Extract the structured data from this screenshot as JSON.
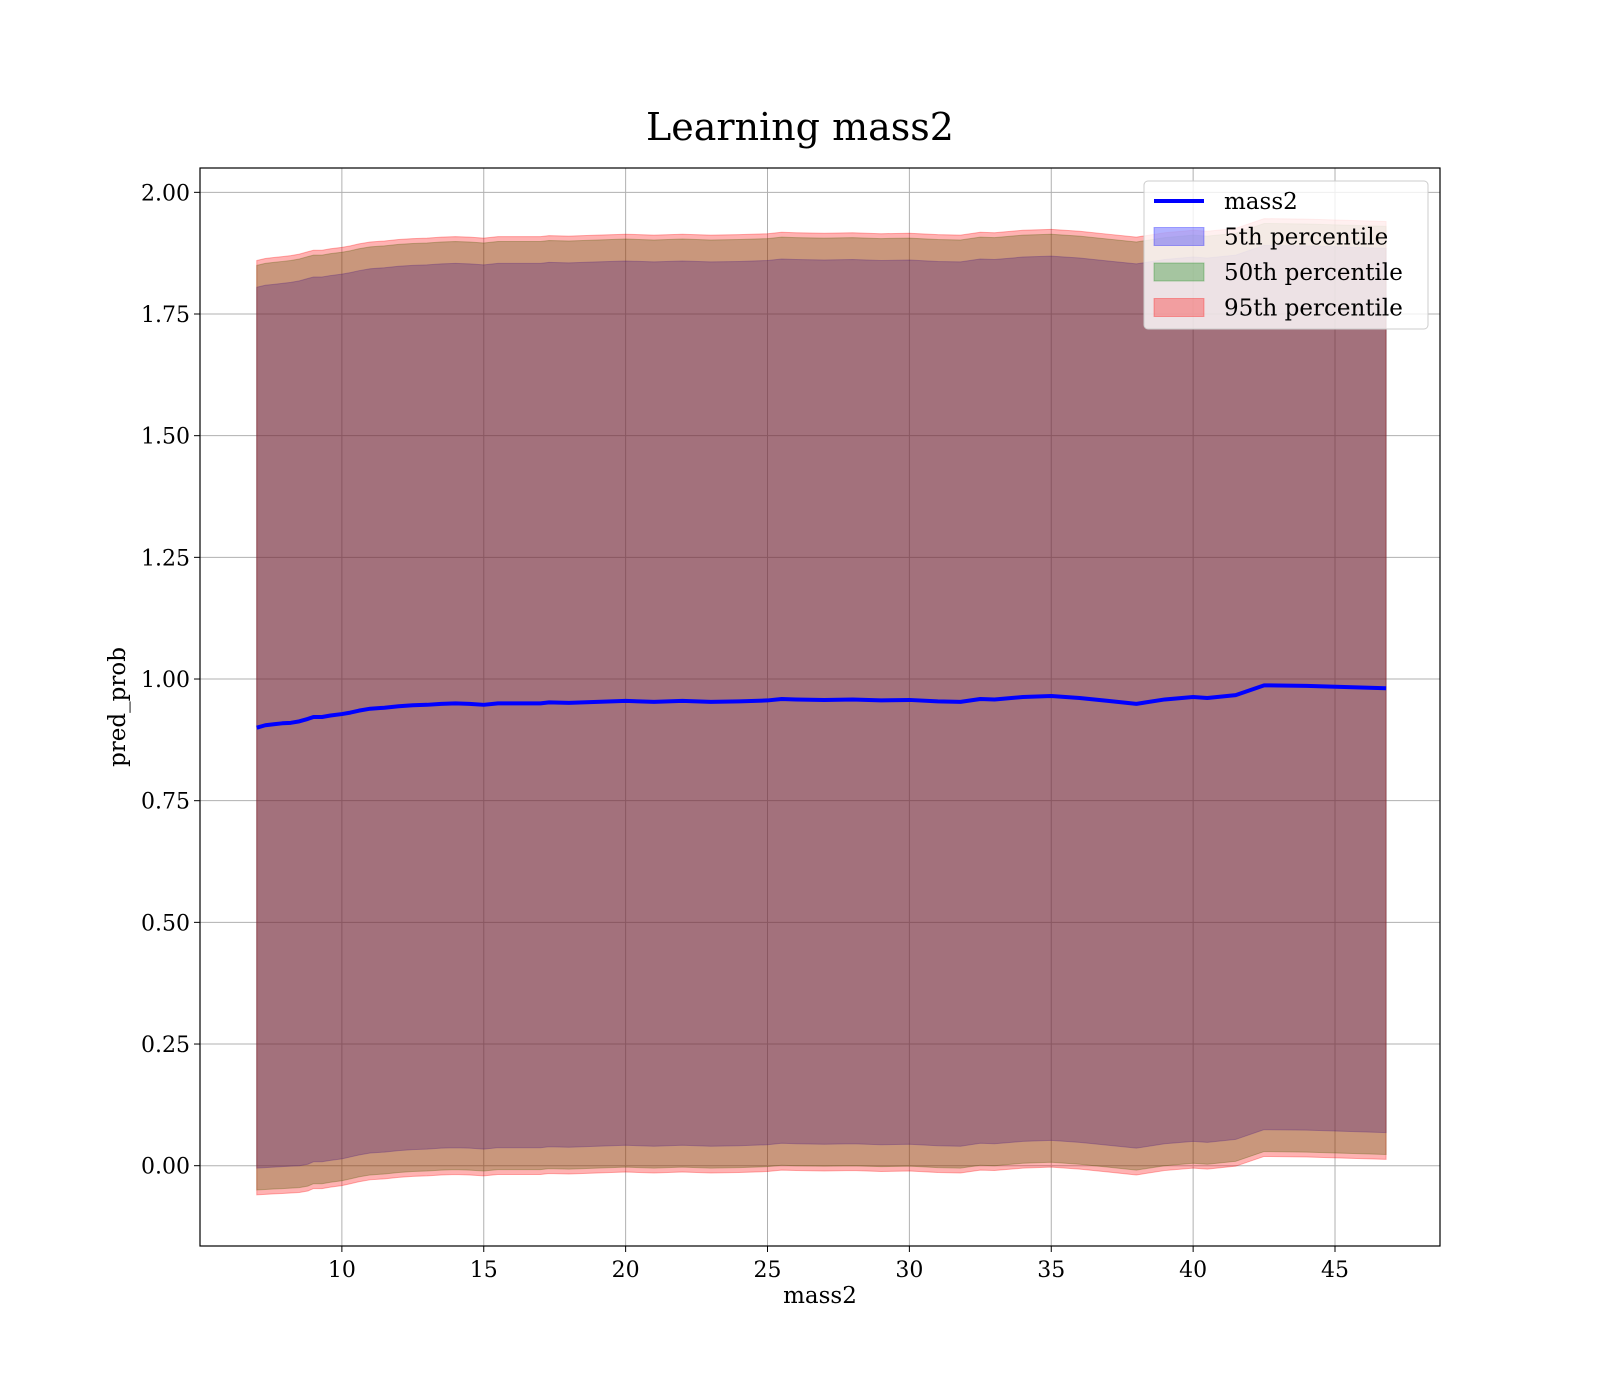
{
  "chart_data": {
    "type": "area",
    "title": "Learning mass2",
    "xlabel": "mass2",
    "ylabel": "pred_prob",
    "xlim": [
      5.0,
      48.7
    ],
    "ylim": [
      -0.165,
      2.05
    ],
    "xticks": [
      10,
      15,
      20,
      25,
      30,
      35,
      40,
      45
    ],
    "xtick_labels": [
      "10",
      "15",
      "20",
      "25",
      "30",
      "35",
      "40",
      "45"
    ],
    "yticks": [
      0.0,
      0.25,
      0.5,
      0.75,
      1.0,
      1.25,
      1.5,
      1.75,
      2.0
    ],
    "ytick_labels": [
      "0.00",
      "0.25",
      "0.50",
      "0.75",
      "1.00",
      "1.25",
      "1.50",
      "1.75",
      "2.00"
    ],
    "grid": true,
    "legend_position": "top-right",
    "x": [
      7.0,
      7.3,
      7.6,
      7.9,
      8.2,
      8.5,
      8.8,
      9.0,
      9.3,
      9.6,
      10.0,
      10.3,
      10.6,
      11.0,
      11.5,
      12.0,
      12.5,
      13.0,
      13.5,
      14.0,
      14.5,
      15.0,
      15.5,
      16.0,
      16.5,
      17.0,
      17.3,
      18.0,
      19.0,
      20.0,
      21.0,
      22.0,
      23.0,
      24.0,
      25.0,
      25.5,
      26.0,
      27.0,
      28.0,
      29.0,
      30.0,
      31.0,
      31.8,
      32.5,
      33.0,
      34.0,
      35.0,
      36.0,
      37.0,
      38.0,
      39.0,
      40.0,
      40.5,
      41.5,
      42.5,
      44.0,
      46.8
    ],
    "series": [
      {
        "name": "mass2",
        "role": "line",
        "color": "#0000ff",
        "values": [
          0.9,
          0.905,
          0.907,
          0.909,
          0.91,
          0.913,
          0.918,
          0.922,
          0.922,
          0.925,
          0.928,
          0.931,
          0.935,
          0.939,
          0.941,
          0.944,
          0.946,
          0.947,
          0.949,
          0.95,
          0.949,
          0.947,
          0.95,
          0.95,
          0.95,
          0.95,
          0.952,
          0.951,
          0.953,
          0.955,
          0.953,
          0.955,
          0.953,
          0.954,
          0.956,
          0.959,
          0.958,
          0.957,
          0.958,
          0.956,
          0.957,
          0.954,
          0.953,
          0.959,
          0.958,
          0.963,
          0.965,
          0.961,
          0.955,
          0.949,
          0.958,
          0.963,
          0.961,
          0.967,
          0.987,
          0.986,
          0.981
        ]
      },
      {
        "name": "5th percentile",
        "role": "band",
        "color": "#0000ff",
        "lower": [
          -0.005,
          -0.004,
          -0.003,
          -0.002,
          -0.001,
          0.0,
          0.003,
          0.008,
          0.008,
          0.011,
          0.014,
          0.018,
          0.022,
          0.026,
          0.028,
          0.031,
          0.033,
          0.034,
          0.036,
          0.037,
          0.036,
          0.034,
          0.037,
          0.037,
          0.037,
          0.037,
          0.039,
          0.038,
          0.04,
          0.042,
          0.04,
          0.042,
          0.04,
          0.041,
          0.043,
          0.046,
          0.045,
          0.044,
          0.045,
          0.043,
          0.044,
          0.041,
          0.04,
          0.046,
          0.045,
          0.05,
          0.052,
          0.048,
          0.042,
          0.036,
          0.045,
          0.05,
          0.048,
          0.054,
          0.074,
          0.073,
          0.068
        ],
        "upper": [
          1.805,
          1.809,
          1.811,
          1.813,
          1.815,
          1.818,
          1.823,
          1.826,
          1.826,
          1.829,
          1.832,
          1.835,
          1.839,
          1.843,
          1.845,
          1.848,
          1.85,
          1.851,
          1.853,
          1.854,
          1.853,
          1.851,
          1.854,
          1.854,
          1.854,
          1.854,
          1.856,
          1.855,
          1.857,
          1.859,
          1.857,
          1.859,
          1.857,
          1.858,
          1.86,
          1.863,
          1.862,
          1.861,
          1.862,
          1.86,
          1.861,
          1.858,
          1.857,
          1.863,
          1.862,
          1.867,
          1.869,
          1.865,
          1.859,
          1.853,
          1.862,
          1.867,
          1.865,
          1.871,
          1.891,
          1.89,
          1.885
        ]
      },
      {
        "name": "50th percentile",
        "role": "band",
        "color": "#008000",
        "lower": [
          -0.05,
          -0.049,
          -0.048,
          -0.047,
          -0.046,
          -0.045,
          -0.042,
          -0.037,
          -0.037,
          -0.034,
          -0.031,
          -0.027,
          -0.023,
          -0.019,
          -0.017,
          -0.014,
          -0.012,
          -0.011,
          -0.009,
          -0.008,
          -0.009,
          -0.011,
          -0.008,
          -0.008,
          -0.008,
          -0.008,
          -0.006,
          -0.007,
          -0.005,
          -0.003,
          -0.005,
          -0.003,
          -0.005,
          -0.004,
          -0.002,
          0.001,
          0.0,
          -0.001,
          0.0,
          -0.002,
          -0.001,
          -0.004,
          -0.005,
          0.001,
          0.0,
          0.005,
          0.007,
          0.003,
          -0.003,
          -0.009,
          0.0,
          0.005,
          0.003,
          0.009,
          0.029,
          0.028,
          0.023
        ],
        "upper": [
          1.85,
          1.854,
          1.856,
          1.858,
          1.86,
          1.863,
          1.868,
          1.871,
          1.871,
          1.874,
          1.877,
          1.88,
          1.884,
          1.888,
          1.89,
          1.893,
          1.895,
          1.896,
          1.898,
          1.899,
          1.898,
          1.896,
          1.899,
          1.899,
          1.899,
          1.899,
          1.901,
          1.9,
          1.902,
          1.904,
          1.902,
          1.904,
          1.902,
          1.903,
          1.905,
          1.908,
          1.907,
          1.906,
          1.907,
          1.905,
          1.906,
          1.903,
          1.902,
          1.908,
          1.907,
          1.912,
          1.914,
          1.91,
          1.904,
          1.898,
          1.907,
          1.912,
          1.91,
          1.916,
          1.936,
          1.935,
          1.93
        ]
      },
      {
        "name": "95th percentile",
        "role": "band",
        "color": "#ff0000",
        "lower": [
          -0.06,
          -0.059,
          -0.058,
          -0.057,
          -0.056,
          -0.055,
          -0.052,
          -0.047,
          -0.047,
          -0.044,
          -0.041,
          -0.037,
          -0.033,
          -0.029,
          -0.027,
          -0.024,
          -0.022,
          -0.021,
          -0.019,
          -0.018,
          -0.019,
          -0.021,
          -0.018,
          -0.018,
          -0.018,
          -0.018,
          -0.016,
          -0.017,
          -0.015,
          -0.013,
          -0.015,
          -0.013,
          -0.015,
          -0.014,
          -0.012,
          -0.009,
          -0.01,
          -0.011,
          -0.01,
          -0.012,
          -0.011,
          -0.014,
          -0.015,
          -0.009,
          -0.01,
          -0.005,
          -0.003,
          -0.007,
          -0.013,
          -0.019,
          -0.01,
          -0.005,
          -0.007,
          -0.001,
          0.019,
          0.018,
          0.013
        ],
        "upper": [
          1.86,
          1.864,
          1.866,
          1.868,
          1.87,
          1.873,
          1.878,
          1.881,
          1.881,
          1.884,
          1.887,
          1.89,
          1.894,
          1.898,
          1.9,
          1.903,
          1.905,
          1.906,
          1.908,
          1.909,
          1.908,
          1.906,
          1.909,
          1.909,
          1.909,
          1.909,
          1.911,
          1.91,
          1.912,
          1.914,
          1.912,
          1.914,
          1.912,
          1.913,
          1.915,
          1.918,
          1.917,
          1.916,
          1.917,
          1.915,
          1.916,
          1.913,
          1.912,
          1.918,
          1.917,
          1.922,
          1.924,
          1.92,
          1.914,
          1.908,
          1.917,
          1.922,
          1.92,
          1.926,
          1.946,
          1.945,
          1.94
        ]
      }
    ]
  }
}
